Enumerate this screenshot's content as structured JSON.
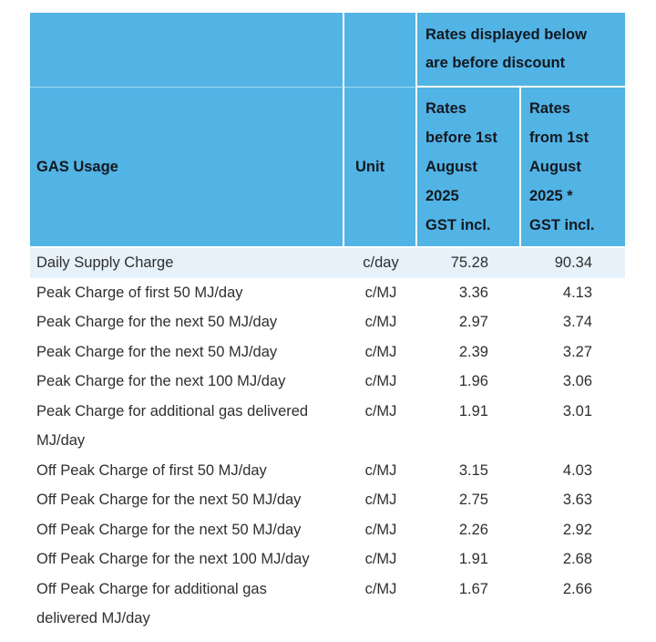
{
  "table": {
    "header": {
      "note_lines": [
        "Rates displayed below",
        "are before discount"
      ],
      "usage_label": "GAS Usage",
      "unit_label": "Unit",
      "before_lines": [
        "Rates",
        "before 1st",
        "August",
        "2025",
        "GST incl."
      ],
      "from_lines": [
        "Rates",
        "from 1st",
        "August",
        "2025 *",
        "GST incl."
      ]
    },
    "rows": [
      {
        "usage_lines": [
          "Daily Supply Charge"
        ],
        "unit": "c/day",
        "rate_before": "75.28",
        "rate_from": "90.34"
      },
      {
        "usage_lines": [
          "Peak Charge of first 50 MJ/day"
        ],
        "unit": "c/MJ",
        "rate_before": "3.36",
        "rate_from": "4.13"
      },
      {
        "usage_lines": [
          "Peak Charge for the next 50 MJ/day"
        ],
        "unit": "c/MJ",
        "rate_before": "2.97",
        "rate_from": "3.74"
      },
      {
        "usage_lines": [
          "Peak Charge for the next 50 MJ/day"
        ],
        "unit": "c/MJ",
        "rate_before": "2.39",
        "rate_from": "3.27"
      },
      {
        "usage_lines": [
          "Peak Charge for the next 100 MJ/day"
        ],
        "unit": "c/MJ",
        "rate_before": "1.96",
        "rate_from": "3.06"
      },
      {
        "usage_lines": [
          "Peak Charge for additional gas delivered",
          "MJ/day"
        ],
        "unit": "c/MJ",
        "rate_before": "1.91",
        "rate_from": "3.01"
      },
      {
        "usage_lines": [
          "Off Peak Charge of first 50 MJ/day"
        ],
        "unit": "c/MJ",
        "rate_before": "3.15",
        "rate_from": "4.03"
      },
      {
        "usage_lines": [
          "Off Peak Charge for the next 50 MJ/day"
        ],
        "unit": "c/MJ",
        "rate_before": "2.75",
        "rate_from": "3.63"
      },
      {
        "usage_lines": [
          "Off Peak Charge for the next 50 MJ/day"
        ],
        "unit": "c/MJ",
        "rate_before": "2.26",
        "rate_from": "2.92"
      },
      {
        "usage_lines": [
          "Off Peak Charge for the next 100 MJ/day"
        ],
        "unit": "c/MJ",
        "rate_before": "1.91",
        "rate_from": "2.68"
      },
      {
        "usage_lines": [
          "Off Peak Charge for additional gas",
          "delivered MJ/day"
        ],
        "unit": "c/MJ",
        "rate_before": "1.67",
        "rate_from": "2.66"
      }
    ],
    "colors": {
      "header_bg": "#52b3e5",
      "header_text": "#14181f",
      "body_text": "#2f2f2f",
      "highlight_row_bg": "#e6f1f9",
      "grid_line": "#ffffff"
    }
  }
}
